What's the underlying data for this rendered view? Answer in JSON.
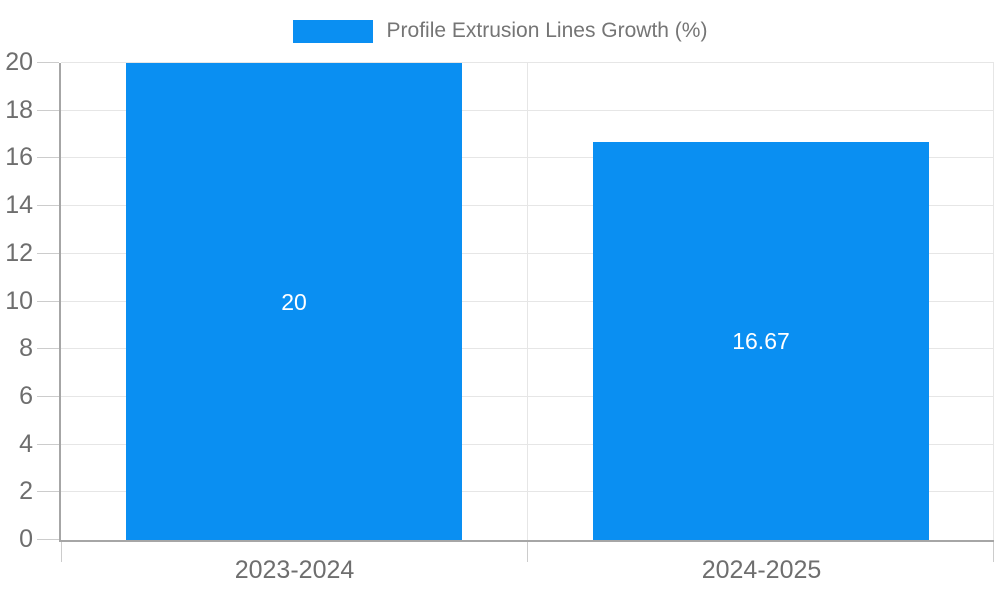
{
  "legend": {
    "label": "Profile Extrusion Lines Growth (%)"
  },
  "colors": {
    "bar": "#0a8ff2",
    "grid": "#e6e6e6",
    "axis": "#a6a6a6",
    "tick": "#cccccc",
    "axis_label": "#6e6e6e",
    "legend_text": "#757575",
    "value_label": "#ffffff"
  },
  "chart_data": {
    "type": "bar",
    "title": "Profile Extrusion Lines Growth (%)",
    "categories": [
      "2023-2024",
      "2024-2025"
    ],
    "series": [
      {
        "name": "Profile Extrusion Lines Growth (%)",
        "values": [
          20,
          16.67
        ],
        "value_labels": [
          "20",
          "16.67"
        ]
      }
    ],
    "xlabel": "",
    "ylabel": "",
    "ylim": [
      0,
      20
    ],
    "ytick_step": 2,
    "yticks": [
      0,
      2,
      4,
      6,
      8,
      10,
      12,
      14,
      16,
      18,
      20
    ],
    "grid": true,
    "legend_position": "top-center",
    "value_labels_inside_bars": true
  }
}
